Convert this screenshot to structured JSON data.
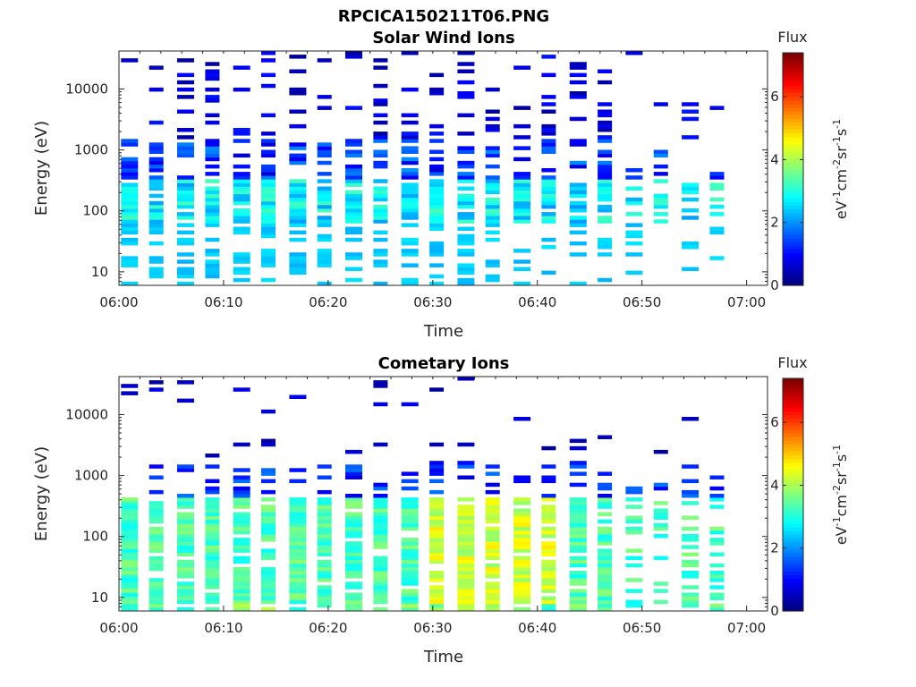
{
  "figure": {
    "title": "RPCICA150211T06.PNG"
  },
  "chart_data": [
    {
      "type": "heatmap",
      "title": "Solar Wind Ions",
      "xlabel": "Time",
      "ylabel": "Energy (eV)",
      "x_ticks": [
        "06:00",
        "06:10",
        "06:20",
        "06:30",
        "06:40",
        "06:50",
        "07:00"
      ],
      "xlim_minutes": [
        0,
        62
      ],
      "y_ticks": [
        "10",
        "100",
        "1000",
        "10000"
      ],
      "ylim": [
        6,
        42000
      ],
      "y_scale": "log",
      "colorbar": {
        "title": "Flux",
        "label": "eV-1cm-2sr-1s-1",
        "ticks": [
          "0",
          "2",
          "4",
          "6"
        ],
        "range": [
          0,
          7.4
        ],
        "colormap": "jet"
      },
      "description": "Scans every ~2.7 min; dominant flux ~2-3 at 100-300 eV, sparse high-energy streaks ~0.5-1.5"
    },
    {
      "type": "heatmap",
      "title": "Cometary Ions",
      "xlabel": "Time",
      "ylabel": "Energy (eV)",
      "x_ticks": [
        "06:00",
        "06:10",
        "06:20",
        "06:30",
        "06:40",
        "06:50",
        "07:00"
      ],
      "xlim_minutes": [
        0,
        62
      ],
      "y_ticks": [
        "10",
        "100",
        "1000",
        "10000"
      ],
      "ylim": [
        6,
        42000
      ],
      "y_scale": "log",
      "colorbar": {
        "title": "Flux",
        "label": "eV-1cm-2sr-1s-1",
        "ticks": [
          "0",
          "2",
          "4",
          "6"
        ],
        "range": [
          0,
          7.4
        ],
        "colormap": "jet"
      },
      "description": "Broad flux ~3-4.5 between 8 and 400 eV, peaking ~4.5-5 near 06:32-06:40"
    }
  ]
}
